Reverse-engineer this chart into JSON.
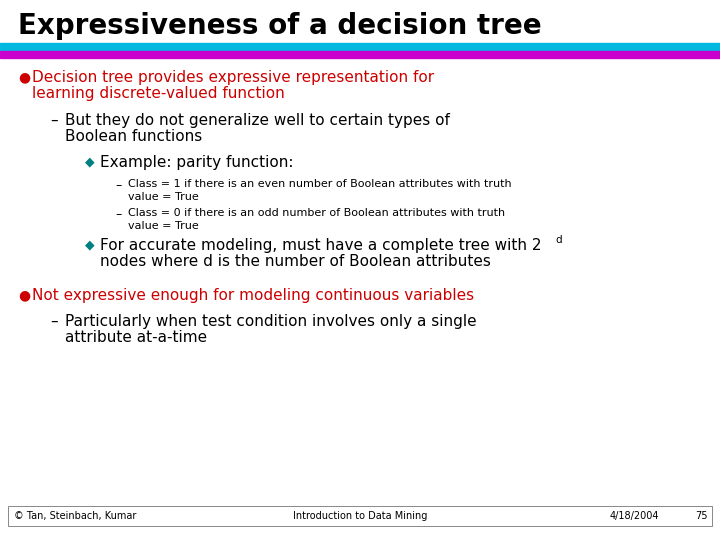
{
  "title": "Expressiveness of a decision tree",
  "title_color": "#000000",
  "title_fontsize": 20,
  "bg_color": "#ffffff",
  "line1_color": "#00b8e0",
  "line2_color": "#cc00cc",
  "footer_left": "© Tan, Steinbach, Kumar",
  "footer_center": "Introduction to Data Mining",
  "footer_right": "4/18/2004",
  "footer_page": "75",
  "red": "#cc0000",
  "teal": "#008080",
  "black": "#000000",
  "gray": "#555555"
}
